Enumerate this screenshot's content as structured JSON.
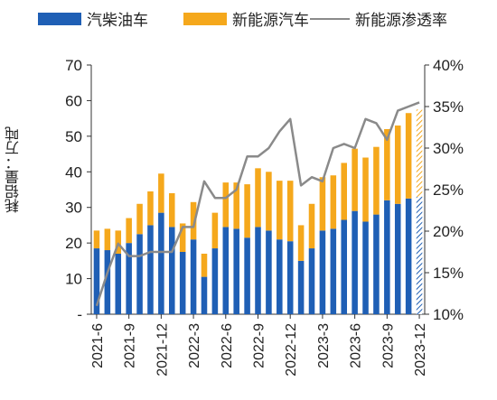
{
  "chart_data": {
    "type": "bar",
    "subtype": "stacked-bar-with-line",
    "legend": [
      "汽柴油车",
      "新能源汽车",
      "新能源渗透率"
    ],
    "ylabel": "耗铝量：万吨",
    "ylim": [
      0,
      70
    ],
    "y_ticks": [
      "-",
      "10",
      "20",
      "30",
      "40",
      "50",
      "60",
      "70"
    ],
    "y2lim": [
      0.1,
      0.4
    ],
    "y2_ticks": [
      "10%",
      "15%",
      "20%",
      "25%",
      "30%",
      "35%",
      "40%"
    ],
    "x_tick_labels": [
      "2021-6",
      "2021-9",
      "2021-12",
      "2022-3",
      "2022-6",
      "2022-9",
      "2022-12",
      "2023-3",
      "2023-6",
      "2023-9",
      "2023-12"
    ],
    "categories": [
      "2021-6",
      "2021-7",
      "2021-8",
      "2021-9",
      "2021-10",
      "2021-11",
      "2021-12",
      "2022-1",
      "2022-2",
      "2022-3",
      "2022-4",
      "2022-5",
      "2022-6",
      "2022-7",
      "2022-8",
      "2022-9",
      "2022-10",
      "2022-11",
      "2022-12",
      "2023-1",
      "2023-2",
      "2023-3",
      "2023-4",
      "2023-5",
      "2023-6",
      "2023-7",
      "2023-8",
      "2023-9",
      "2023-10",
      "2023-11",
      "2023-12"
    ],
    "series": [
      {
        "name": "汽柴油车",
        "type": "bar",
        "color": "#1f5fb5",
        "values": [
          18.5,
          18,
          17,
          20,
          22.5,
          25,
          28.5,
          24.5,
          17.5,
          21,
          10.5,
          18.5,
          24.5,
          24,
          21.5,
          24.5,
          23.5,
          21,
          20.5,
          15,
          18.5,
          23.5,
          24,
          26.5,
          29,
          26,
          28,
          32,
          31,
          32.5,
          33
        ]
      },
      {
        "name": "新能源汽车",
        "type": "bar-stacked",
        "color": "#f5a81c",
        "values": [
          5,
          6,
          6.5,
          7,
          8.5,
          9.5,
          11,
          9.5,
          8,
          10.5,
          6.5,
          10,
          12.5,
          13,
          15,
          16.5,
          16.5,
          16.5,
          17,
          10,
          12.5,
          15,
          15,
          16,
          17.5,
          18,
          19,
          20,
          22,
          24,
          24.5
        ]
      },
      {
        "name": "新能源渗透率",
        "type": "line",
        "axis": "right",
        "color": "#8a8a8a",
        "values": [
          0.11,
          0.15,
          0.185,
          0.17,
          0.17,
          0.175,
          0.175,
          0.175,
          0.205,
          0.205,
          0.26,
          0.24,
          0.24,
          0.25,
          0.29,
          0.29,
          0.3,
          0.32,
          0.335,
          0.255,
          0.265,
          0.26,
          0.3,
          0.305,
          0.3,
          0.335,
          0.33,
          0.31,
          0.345,
          0.35,
          0.355
        ]
      }
    ],
    "last_bar_hatched": true,
    "grid": false,
    "legend_position": "top"
  }
}
